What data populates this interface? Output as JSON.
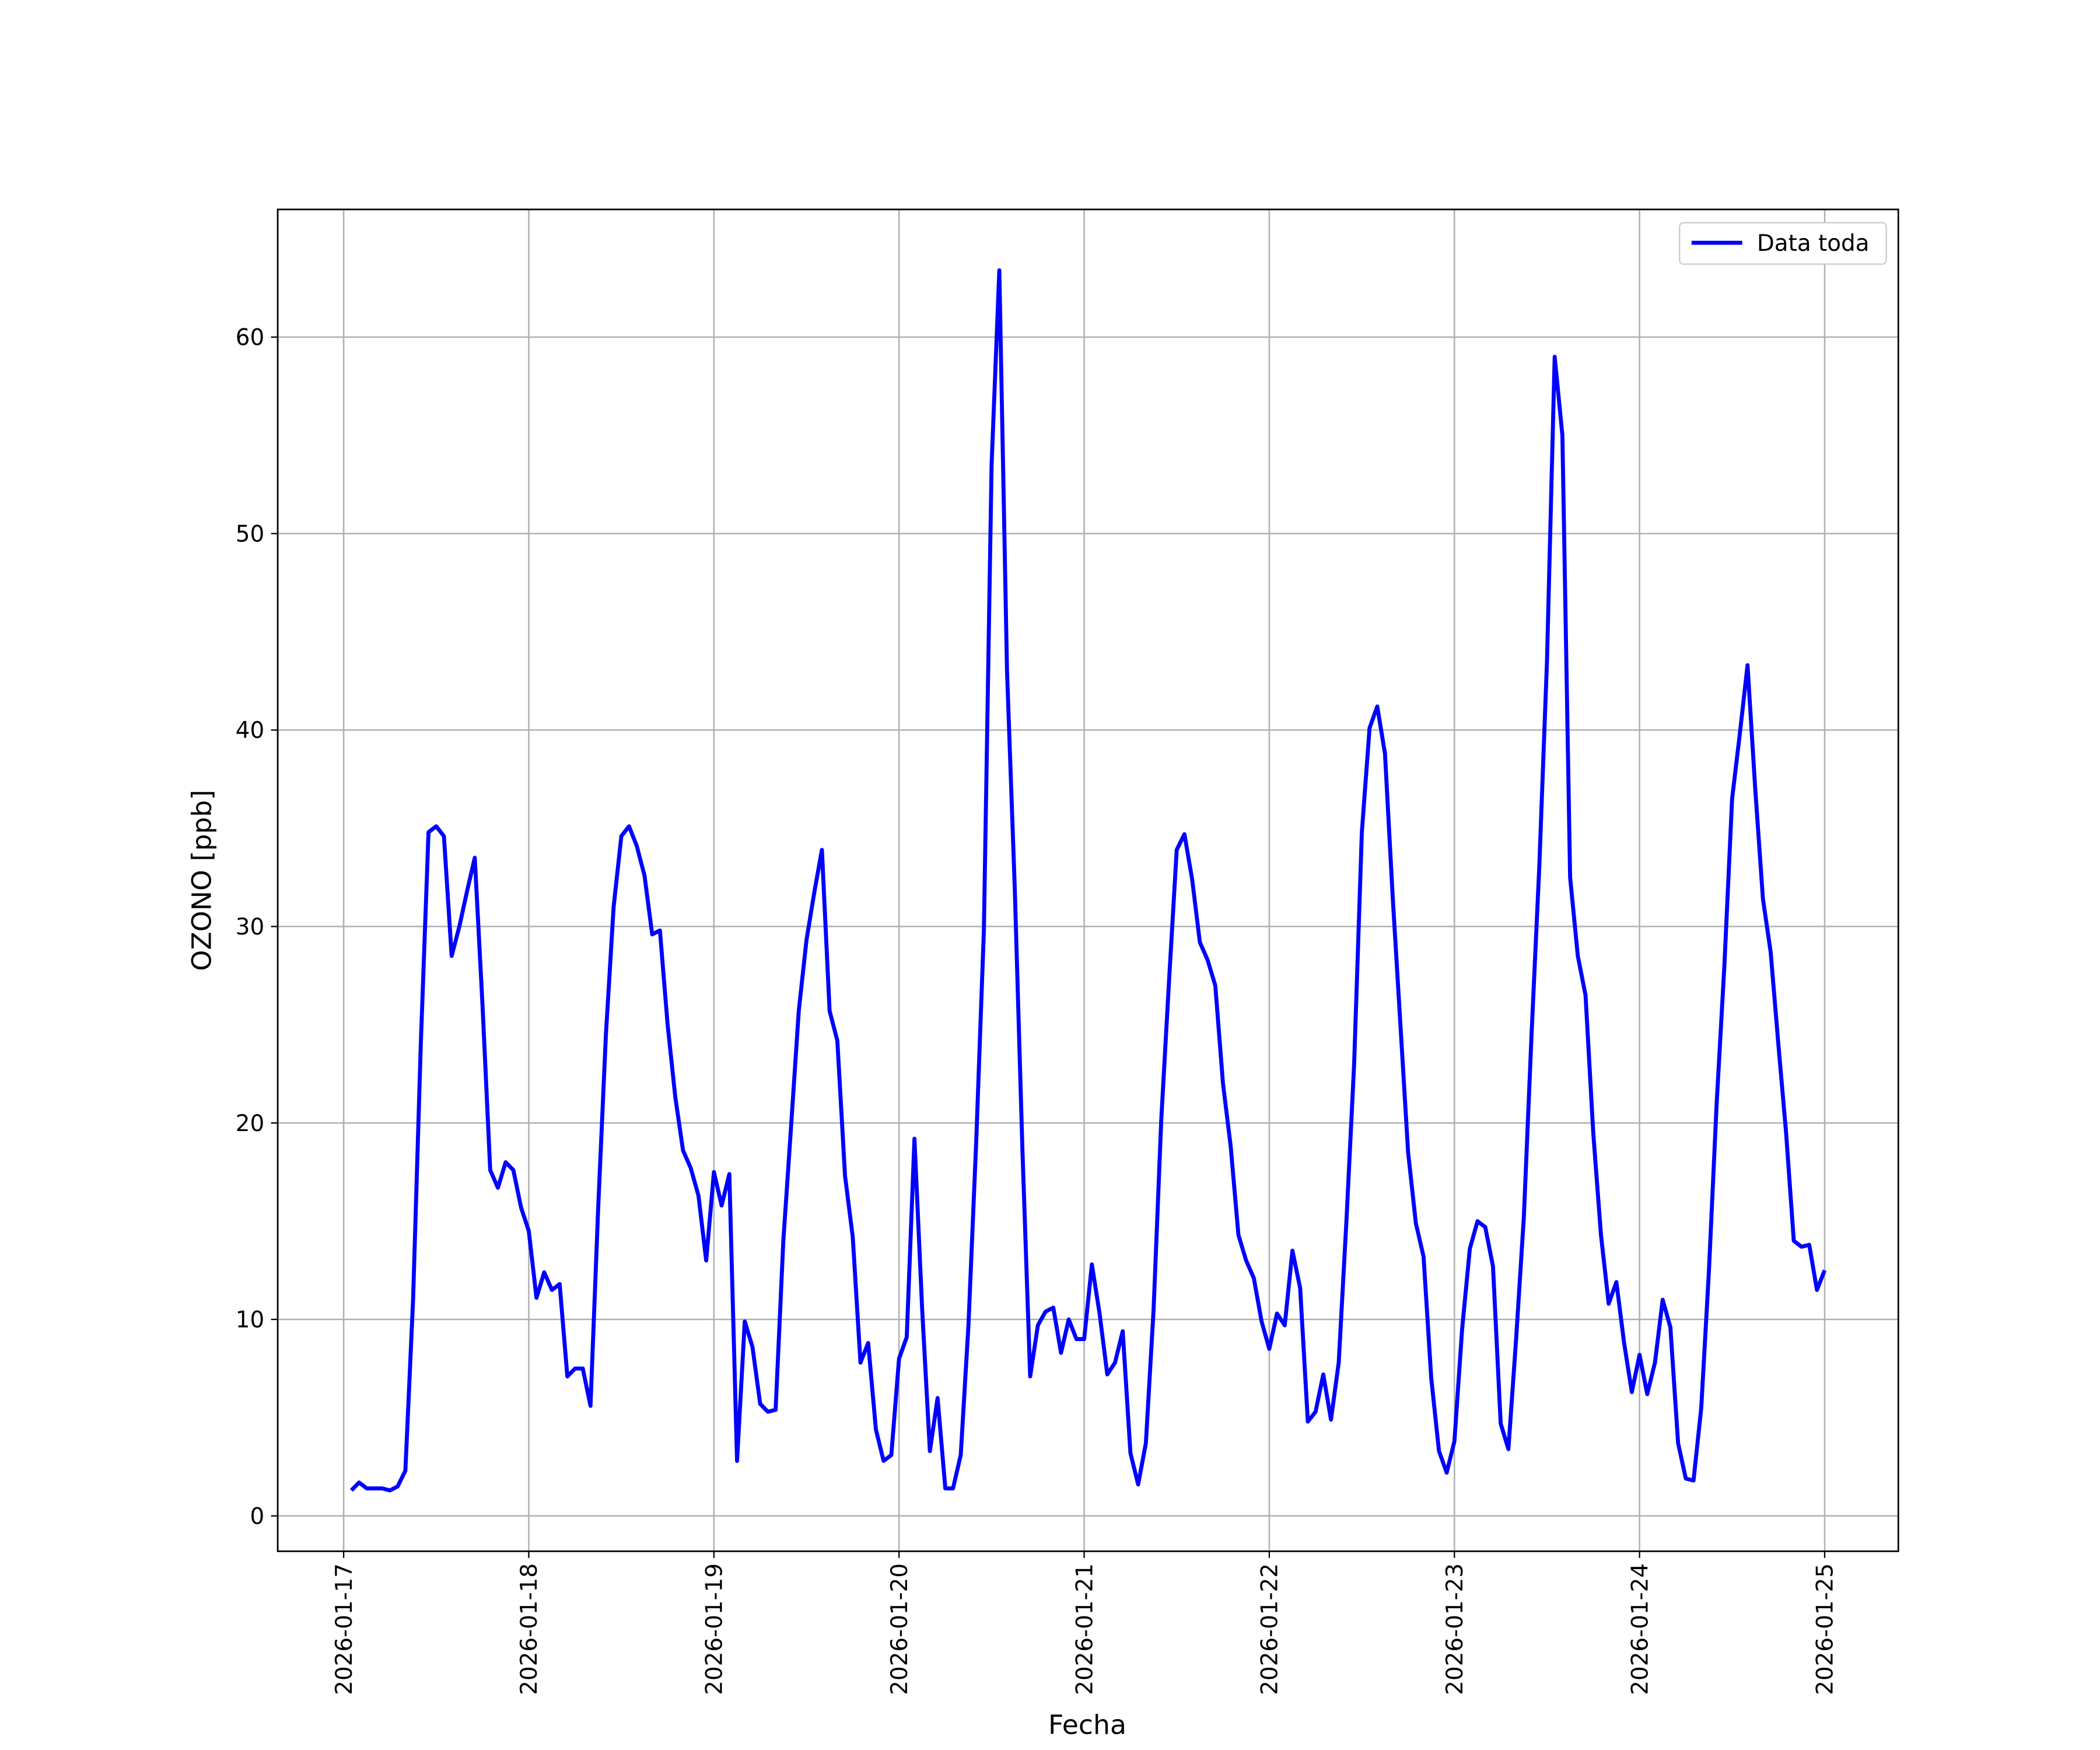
{
  "chart_data": {
    "type": "line",
    "xlabel": "Fecha",
    "ylabel": "OZONO [ppb]",
    "x": [
      "2026-01-17 01:00",
      "2026-01-17 02:00",
      "2026-01-17 03:00",
      "2026-01-17 04:00",
      "2026-01-17 05:00",
      "2026-01-17 06:00",
      "2026-01-17 07:00",
      "2026-01-17 08:00",
      "2026-01-17 09:00",
      "2026-01-17 10:00",
      "2026-01-17 11:00",
      "2026-01-17 12:00",
      "2026-01-17 13:00",
      "2026-01-17 14:00",
      "2026-01-17 15:00",
      "2026-01-17 16:00",
      "2026-01-17 17:00",
      "2026-01-17 18:00",
      "2026-01-17 19:00",
      "2026-01-17 20:00",
      "2026-01-17 21:00",
      "2026-01-17 22:00",
      "2026-01-17 23:00",
      "2026-01-18 00:00",
      "2026-01-18 01:00",
      "2026-01-18 02:00",
      "2026-01-18 03:00",
      "2026-01-18 04:00",
      "2026-01-18 05:00",
      "2026-01-18 06:00",
      "2026-01-18 07:00",
      "2026-01-18 08:00",
      "2026-01-18 09:00",
      "2026-01-18 10:00",
      "2026-01-18 11:00",
      "2026-01-18 12:00",
      "2026-01-18 13:00",
      "2026-01-18 14:00",
      "2026-01-18 15:00",
      "2026-01-18 16:00",
      "2026-01-18 17:00",
      "2026-01-18 18:00",
      "2026-01-18 19:00",
      "2026-01-18 20:00",
      "2026-01-18 21:00",
      "2026-01-18 22:00",
      "2026-01-18 23:00",
      "2026-01-19 00:00",
      "2026-01-19 01:00",
      "2026-01-19 02:00",
      "2026-01-19 03:00",
      "2026-01-19 04:00",
      "2026-01-19 05:00",
      "2026-01-19 06:00",
      "2026-01-19 07:00",
      "2026-01-19 08:00",
      "2026-01-19 09:00",
      "2026-01-19 10:00",
      "2026-01-19 11:00",
      "2026-01-19 12:00",
      "2026-01-19 13:00",
      "2026-01-19 14:00",
      "2026-01-19 15:00",
      "2026-01-19 16:00",
      "2026-01-19 17:00",
      "2026-01-19 18:00",
      "2026-01-19 19:00",
      "2026-01-19 20:00",
      "2026-01-19 21:00",
      "2026-01-19 22:00",
      "2026-01-19 23:00",
      "2026-01-20 00:00",
      "2026-01-20 01:00",
      "2026-01-20 02:00",
      "2026-01-20 03:00",
      "2026-01-20 04:00",
      "2026-01-20 05:00",
      "2026-01-20 06:00",
      "2026-01-20 07:00",
      "2026-01-20 08:00",
      "2026-01-20 09:00",
      "2026-01-20 10:00",
      "2026-01-20 11:00",
      "2026-01-20 12:00",
      "2026-01-20 13:00",
      "2026-01-20 14:00",
      "2026-01-20 15:00",
      "2026-01-20 16:00",
      "2026-01-20 17:00",
      "2026-01-20 18:00",
      "2026-01-20 19:00",
      "2026-01-20 20:00",
      "2026-01-20 21:00",
      "2026-01-20 22:00",
      "2026-01-20 23:00",
      "2026-01-21 00:00",
      "2026-01-21 01:00",
      "2026-01-21 02:00",
      "2026-01-21 03:00",
      "2026-01-21 04:00",
      "2026-01-21 05:00",
      "2026-01-21 06:00",
      "2026-01-21 07:00",
      "2026-01-21 08:00",
      "2026-01-21 09:00",
      "2026-01-21 10:00",
      "2026-01-21 11:00",
      "2026-01-21 12:00",
      "2026-01-21 13:00",
      "2026-01-21 14:00",
      "2026-01-21 15:00",
      "2026-01-21 16:00",
      "2026-01-21 17:00",
      "2026-01-21 18:00",
      "2026-01-21 19:00",
      "2026-01-21 20:00",
      "2026-01-21 21:00",
      "2026-01-21 22:00",
      "2026-01-21 23:00",
      "2026-01-22 00:00",
      "2026-01-22 01:00",
      "2026-01-22 02:00",
      "2026-01-22 03:00",
      "2026-01-22 04:00",
      "2026-01-22 05:00",
      "2026-01-22 06:00",
      "2026-01-22 07:00",
      "2026-01-22 08:00",
      "2026-01-22 09:00",
      "2026-01-22 10:00",
      "2026-01-22 11:00",
      "2026-01-22 12:00",
      "2026-01-22 13:00",
      "2026-01-22 14:00",
      "2026-01-22 15:00",
      "2026-01-22 16:00",
      "2026-01-22 17:00",
      "2026-01-22 18:00",
      "2026-01-22 19:00",
      "2026-01-22 20:00",
      "2026-01-22 21:00",
      "2026-01-22 22:00",
      "2026-01-22 23:00",
      "2026-01-23 00:00",
      "2026-01-23 01:00",
      "2026-01-23 02:00",
      "2026-01-23 03:00",
      "2026-01-23 04:00",
      "2026-01-23 05:00",
      "2026-01-23 06:00",
      "2026-01-23 07:00",
      "2026-01-23 08:00",
      "2026-01-23 09:00",
      "2026-01-23 10:00",
      "2026-01-23 11:00",
      "2026-01-23 12:00",
      "2026-01-23 13:00",
      "2026-01-23 14:00",
      "2026-01-23 15:00",
      "2026-01-23 16:00",
      "2026-01-23 17:00",
      "2026-01-23 18:00",
      "2026-01-23 19:00",
      "2026-01-23 20:00",
      "2026-01-23 21:00",
      "2026-01-23 22:00",
      "2026-01-23 23:00",
      "2026-01-24 00:00",
      "2026-01-24 01:00",
      "2026-01-24 02:00",
      "2026-01-24 03:00",
      "2026-01-24 04:00",
      "2026-01-24 05:00",
      "2026-01-24 06:00",
      "2026-01-24 07:00",
      "2026-01-24 08:00",
      "2026-01-24 09:00",
      "2026-01-24 10:00",
      "2026-01-24 11:00",
      "2026-01-24 12:00",
      "2026-01-24 13:00",
      "2026-01-24 14:00",
      "2026-01-24 15:00",
      "2026-01-24 16:00",
      "2026-01-24 17:00",
      "2026-01-24 18:00",
      "2026-01-24 19:00",
      "2026-01-24 20:00",
      "2026-01-24 21:00",
      "2026-01-24 22:00",
      "2026-01-24 23:00",
      "2026-01-25 00:00"
    ],
    "series": [
      {
        "name": "Data toda",
        "color": "#0000ff",
        "values": [
          1.3,
          1.7,
          1.4,
          1.4,
          1.4,
          1.3,
          1.5,
          2.3,
          11,
          24,
          34.8,
          35.1,
          34.6,
          28.5,
          30,
          31.8,
          33.5,
          26,
          17.6,
          16.7,
          18,
          17.6,
          15.7,
          14.5,
          11.1,
          12.4,
          11.5,
          11.8,
          7.1,
          7.5,
          7.5,
          5.6,
          15.7,
          24.5,
          31,
          34.6,
          35.1,
          34.1,
          32.6,
          29.6,
          29.8,
          25,
          21.3,
          18.6,
          17.7,
          16.3,
          13,
          17.5,
          15.8,
          17.4,
          2.8,
          9.9,
          8.6,
          5.7,
          5.3,
          5.4,
          14,
          19.8,
          25.7,
          29.3,
          31.7,
          33.9,
          25.7,
          24.2,
          17.3,
          14.2,
          7.8,
          8.8,
          4.4,
          2.8,
          3.1,
          8,
          9.1,
          19.2,
          10.5,
          3.3,
          6,
          1.4,
          1.4,
          3.1,
          9.7,
          19,
          29.8,
          53.5,
          63.4,
          43,
          32,
          18.6,
          7.1,
          9.7,
          10.4,
          10.6,
          8.3,
          10,
          9,
          9,
          12.8,
          10.3,
          7.2,
          7.8,
          9.4,
          3.2,
          1.6,
          3.7,
          10.5,
          20.2,
          27.2,
          33.9,
          34.7,
          32.4,
          29.2,
          28.3,
          27,
          22,
          18.8,
          14.3,
          13,
          12.1,
          9.9,
          8.5,
          10.3,
          9.7,
          13.5,
          11.6,
          4.8,
          5.3,
          7.2,
          4.9,
          7.8,
          15,
          23,
          34.8,
          40.1,
          41.2,
          38.8,
          31.5,
          25,
          18.5,
          14.9,
          13.2,
          7,
          3.3,
          2.2,
          3.8,
          9.5,
          13.6,
          15,
          14.7,
          12.7,
          4.7,
          3.4,
          9,
          15.2,
          24.5,
          33,
          43.5,
          59,
          55,
          32.5,
          28.5,
          26.5,
          19.5,
          14.3,
          10.8,
          11.9,
          8.8,
          6.3,
          8.2,
          6.2,
          7.8,
          11,
          9.6,
          3.7,
          1.9,
          1.8,
          5.5,
          12.5,
          21,
          28,
          36.5,
          39.8,
          43.3,
          37,
          31.4,
          28.7,
          24,
          19.5,
          14,
          13.7,
          13.8,
          11.5,
          12.5
        ]
      }
    ],
    "xlim": [
      "2026-01-16 15:27",
      "2026-01-25 09:33"
    ],
    "xticks": [
      "2026-01-17",
      "2026-01-18",
      "2026-01-19",
      "2026-01-20",
      "2026-01-21",
      "2026-01-22",
      "2026-01-23",
      "2026-01-24",
      "2026-01-25"
    ],
    "ylim": [
      -1.8,
      66.5
    ],
    "yticks": [
      0,
      10,
      20,
      30,
      40,
      50,
      60
    ],
    "grid": true,
    "legend": "upper right"
  }
}
